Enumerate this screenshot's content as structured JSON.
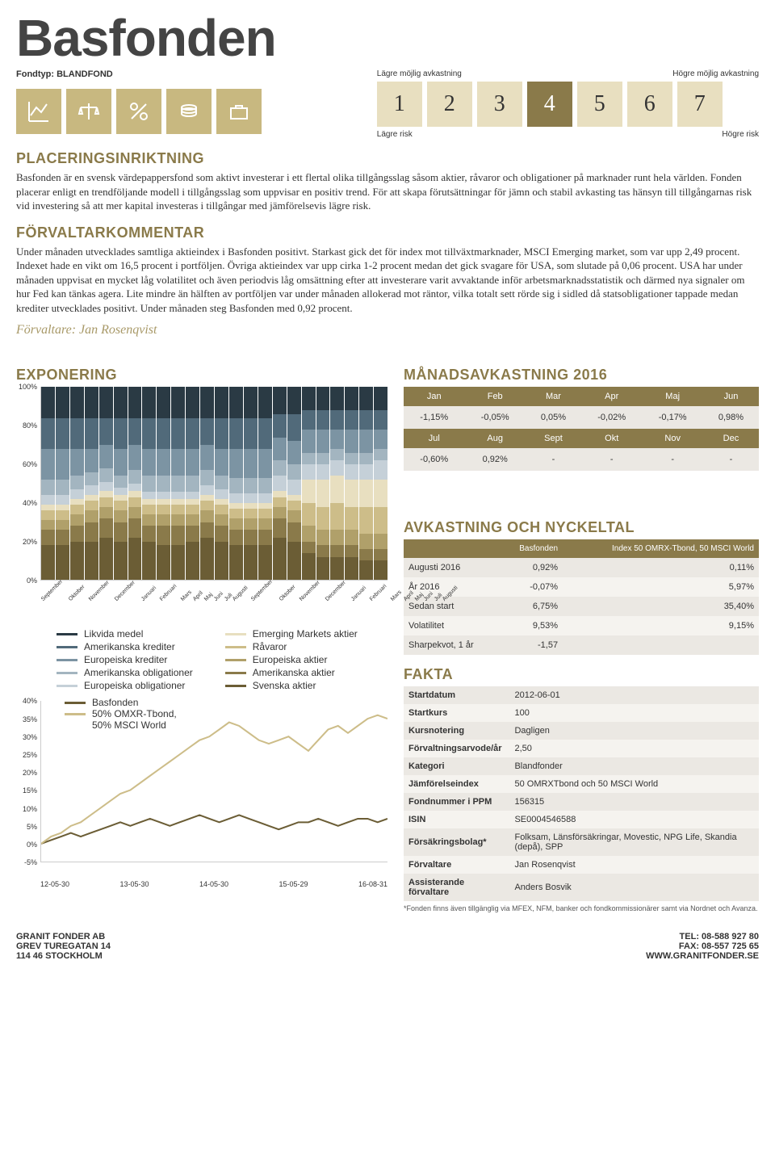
{
  "header": {
    "title": "Basfonden",
    "fondtyp_label": "Fondtyp: BLANDFOND",
    "risk": {
      "label_low": "Lägre möjlig avkastning",
      "label_high": "Högre möjlig avkastning",
      "sub_low": "Lägre risk",
      "sub_high": "Högre risk",
      "boxes": [
        "1",
        "2",
        "3",
        "4",
        "5",
        "6",
        "7"
      ],
      "active_index": 3
    }
  },
  "sections": {
    "placering_title": "PLACERINGSINRIKTNING",
    "placering_body": "Basfonden är en svensk värdepappersfond som aktivt investerar i ett flertal olika tillgångsslag såsom aktier, råvaror och obligationer på marknader runt hela världen. Fonden placerar enligt en trendföljande modell i tillgångsslag som uppvisar en positiv trend. För att skapa förutsättningar för jämn och stabil avkasting tas hänsyn till tillgångarnas risk vid investering så att mer kapital investeras i tillgångar med jämförelsevis lägre risk.",
    "forvaltar_title": "FÖRVALTARKOMMENTAR",
    "forvaltar_body": "Under månaden utvecklades samtliga aktieindex i Basfonden positivt. Starkast gick det för index mot tillväxtmarknader, MSCI Emerging market, som var upp 2,49 procent. Indexet hade en vikt om 16,5 procent i portföljen. Övriga aktieindex var upp cirka 1-2 procent medan det gick svagare för USA, som slutade på 0,06 procent. USA har under månaden uppvisat en mycket låg volatilitet och även periodvis låg omsättning efter att investerare varit avvaktande inför arbetsmarknadsstatistik och därmed nya signaler om hur Fed kan tänkas agera. Lite mindre än hälften av portföljen var under månaden allokerad mot räntor, vilka totalt sett rörde sig i sidled då statsobligationer tappade medan krediter utvecklades positivt. Under månaden steg Basfonden med 0,92 procent.",
    "manager": "Förvaltare: Jan Rosenqvist"
  },
  "exposure": {
    "title": "EXPONERING",
    "y_ticks": [
      "100%",
      "80%",
      "60%",
      "40%",
      "20%",
      "0%"
    ],
    "x_labels": [
      "September",
      "Oktober",
      "November",
      "December",
      "Januari",
      "Februari",
      "Mars",
      "April",
      "Maj",
      "Juni",
      "Juli",
      "Augusti",
      "September",
      "Oktober",
      "November",
      "December",
      "Januari",
      "Februari",
      "Mars",
      "April",
      "Maj",
      "Juni",
      "Juli",
      "Augusti"
    ],
    "colors": {
      "likvida": "#2a3a44",
      "am_kred": "#516a7a",
      "eu_kred": "#7c94a3",
      "am_obl": "#a3b5c0",
      "eu_obl": "#c5d0d8",
      "em_akt": "#e8dfc0",
      "ravaror": "#cdbd89",
      "eu_akt": "#b0a06a",
      "am_akt": "#8a7a4a",
      "sv_akt": "#6b5d35"
    },
    "legend_left": [
      {
        "label": "Likvida medel",
        "c": "#2a3a44"
      },
      {
        "label": "Amerikanska krediter",
        "c": "#516a7a"
      },
      {
        "label": "Europeiska krediter",
        "c": "#7c94a3"
      },
      {
        "label": "Amerikanska obligationer",
        "c": "#a3b5c0"
      },
      {
        "label": "Europeiska obligationer",
        "c": "#c5d0d8"
      }
    ],
    "legend_right": [
      {
        "label": "Emerging Markets aktier",
        "c": "#e8dfc0"
      },
      {
        "label": "Råvaror",
        "c": "#cdbd89"
      },
      {
        "label": "Europeiska aktier",
        "c": "#b0a06a"
      },
      {
        "label": "Amerikanska aktier",
        "c": "#8a7a4a"
      },
      {
        "label": "Svenska aktier",
        "c": "#6b5d35"
      }
    ],
    "stacks": [
      [
        18,
        8,
        5,
        5,
        3,
        5,
        8,
        16,
        16,
        16
      ],
      [
        18,
        8,
        5,
        5,
        3,
        5,
        8,
        16,
        16,
        16
      ],
      [
        20,
        8,
        6,
        5,
        3,
        5,
        7,
        14,
        16,
        16
      ],
      [
        20,
        10,
        6,
        5,
        3,
        5,
        7,
        12,
        16,
        16
      ],
      [
        22,
        10,
        6,
        5,
        3,
        5,
        7,
        12,
        14,
        16
      ],
      [
        20,
        10,
        6,
        5,
        3,
        4,
        6,
        14,
        16,
        16
      ],
      [
        22,
        10,
        6,
        5,
        3,
        4,
        7,
        13,
        14,
        16
      ],
      [
        20,
        8,
        6,
        5,
        3,
        4,
        8,
        14,
        16,
        16
      ],
      [
        18,
        10,
        6,
        5,
        3,
        4,
        8,
        14,
        16,
        16
      ],
      [
        18,
        10,
        6,
        5,
        3,
        4,
        8,
        14,
        16,
        16
      ],
      [
        20,
        8,
        6,
        5,
        3,
        4,
        8,
        14,
        16,
        16
      ],
      [
        22,
        8,
        6,
        5,
        3,
        5,
        8,
        13,
        14,
        16
      ],
      [
        20,
        8,
        6,
        5,
        3,
        5,
        7,
        14,
        16,
        16
      ],
      [
        18,
        8,
        6,
        5,
        3,
        5,
        8,
        15,
        16,
        16
      ],
      [
        18,
        8,
        6,
        5,
        3,
        5,
        8,
        15,
        16,
        16
      ],
      [
        18,
        8,
        6,
        5,
        3,
        5,
        8,
        15,
        16,
        16
      ],
      [
        22,
        10,
        6,
        5,
        3,
        8,
        8,
        12,
        12,
        14
      ],
      [
        20,
        10,
        6,
        5,
        3,
        8,
        8,
        12,
        14,
        14
      ],
      [
        14,
        6,
        8,
        12,
        12,
        8,
        6,
        12,
        10,
        12
      ],
      [
        12,
        6,
        8,
        12,
        14,
        8,
        6,
        12,
        10,
        12
      ],
      [
        12,
        6,
        8,
        14,
        14,
        8,
        6,
        10,
        10,
        12
      ],
      [
        12,
        6,
        8,
        12,
        14,
        8,
        6,
        12,
        10,
        12
      ],
      [
        10,
        6,
        8,
        14,
        14,
        8,
        6,
        12,
        10,
        12
      ],
      [
        10,
        6,
        8,
        14,
        14,
        10,
        6,
        10,
        10,
        12
      ]
    ]
  },
  "line_chart": {
    "y_ticks": [
      "40%",
      "35%",
      "30%",
      "25%",
      "20%",
      "15%",
      "10%",
      "5%",
      "0%",
      "-5%"
    ],
    "x_labels": [
      "12-05-30",
      "13-05-30",
      "14-05-30",
      "15-05-29",
      "16-08-31"
    ],
    "series": [
      {
        "name": "Basfonden",
        "color": "#6b5d35",
        "points": [
          0,
          1,
          2,
          3,
          2,
          3,
          4,
          5,
          6,
          5,
          6,
          7,
          6,
          5,
          6,
          7,
          8,
          7,
          6,
          7,
          8,
          7,
          6,
          5,
          4,
          5,
          6,
          6,
          7,
          6,
          5,
          6,
          7,
          7,
          6,
          7
        ]
      },
      {
        "name": "50% OMXR-Tbond, 50% MSCI World",
        "color": "#cdbd89",
        "points": [
          0,
          2,
          3,
          5,
          6,
          8,
          10,
          12,
          14,
          15,
          17,
          19,
          21,
          23,
          25,
          27,
          29,
          30,
          32,
          34,
          33,
          31,
          29,
          28,
          29,
          30,
          28,
          26,
          29,
          32,
          33,
          31,
          33,
          35,
          36,
          35
        ]
      }
    ],
    "legend": {
      "a": "Basfonden",
      "b": "50% OMXR-Tbond,",
      "c": "50% MSCI World"
    }
  },
  "monthly": {
    "title": "MÅNADSAVKASTNING 2016",
    "h1": [
      "Jan",
      "Feb",
      "Mar",
      "Apr",
      "Maj",
      "Jun"
    ],
    "r1": [
      "-1,15%",
      "-0,05%",
      "0,05%",
      "-0,02%",
      "-0,17%",
      "0,98%"
    ],
    "h2": [
      "Jul",
      "Aug",
      "Sept",
      "Okt",
      "Nov",
      "Dec"
    ],
    "r2": [
      "-0,60%",
      "0,92%",
      "-",
      "-",
      "-",
      "-"
    ]
  },
  "nyckeltal": {
    "title": "AVKASTNING OCH NYCKELTAL",
    "head": [
      "",
      "Basfonden",
      "Index 50 OMRX-Tbond, 50 MSCI World"
    ],
    "rows": [
      [
        "Augusti 2016",
        "0,92%",
        "0,11%"
      ],
      [
        "År 2016",
        "-0,07%",
        "5,97%"
      ],
      [
        "Sedan start",
        "6,75%",
        "35,40%"
      ],
      [
        "Volatilitet",
        "9,53%",
        "9,15%"
      ],
      [
        "Sharpekvot, 1 år",
        "-1,57",
        ""
      ]
    ]
  },
  "fakta": {
    "title": "FAKTA",
    "rows": [
      [
        "Startdatum",
        "2012-06-01"
      ],
      [
        "Startkurs",
        "100"
      ],
      [
        "Kursnotering",
        "Dagligen"
      ],
      [
        "Förvaltningsarvode/år",
        "2,50"
      ],
      [
        "Kategori",
        "Blandfonder"
      ],
      [
        "Jämförelseindex",
        "50 OMRXTbond och 50 MSCI World"
      ],
      [
        "Fondnummer i PPM",
        "156315"
      ],
      [
        "ISIN",
        "SE0004546588"
      ],
      [
        "Försäkringsbolag*",
        "Folksam, Länsförsäkringar, Movestic, NPG Life, Skandia (depå), SPP"
      ],
      [
        "Förvaltare",
        "Jan Rosenqvist"
      ],
      [
        "Assisterande förvaltare",
        "Anders Bosvik"
      ]
    ],
    "footnote": "*Fonden finns även tillgänglig via MFEX, NFM, banker och fondkommissionärer samt via Nordnet och Avanza."
  },
  "footer": {
    "left": [
      "GRANIT FONDER AB",
      "GREV TUREGATAN 14",
      "114 46 STOCKHOLM"
    ],
    "right": [
      "TEL: 08-588 927 80",
      "FAX: 08-557 725 65",
      "WWW.GRANITFONDER.SE"
    ]
  }
}
